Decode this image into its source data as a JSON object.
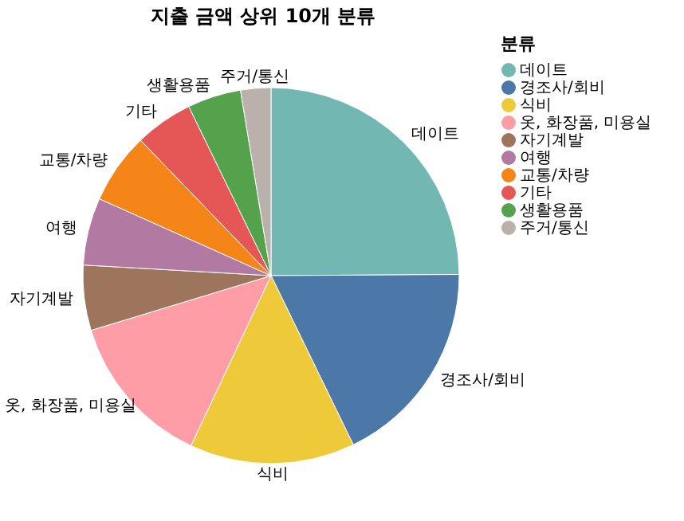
{
  "chart_data": {
    "type": "pie",
    "title": "지출 금액 상위 10개 분류",
    "legend_title": "분류",
    "legend": "right",
    "categories": [
      "데이트",
      "경조사/회비",
      "식비",
      "옷, 화장품, 미용실",
      "자기계발",
      "여행",
      "교통/차량",
      "기타",
      "생활용품",
      "주거/통신"
    ],
    "values": [
      24.9,
      17.9,
      14.2,
      13.3,
      5.6,
      5.8,
      6.1,
      5.0,
      4.6,
      2.6
    ],
    "colors": [
      "#72b7b2",
      "#4c78a8",
      "#eeca3b",
      "#ff9da6",
      "#9d755d",
      "#b279a2",
      "#f58518",
      "#e45756",
      "#54a24b",
      "#bab0ac"
    ]
  }
}
